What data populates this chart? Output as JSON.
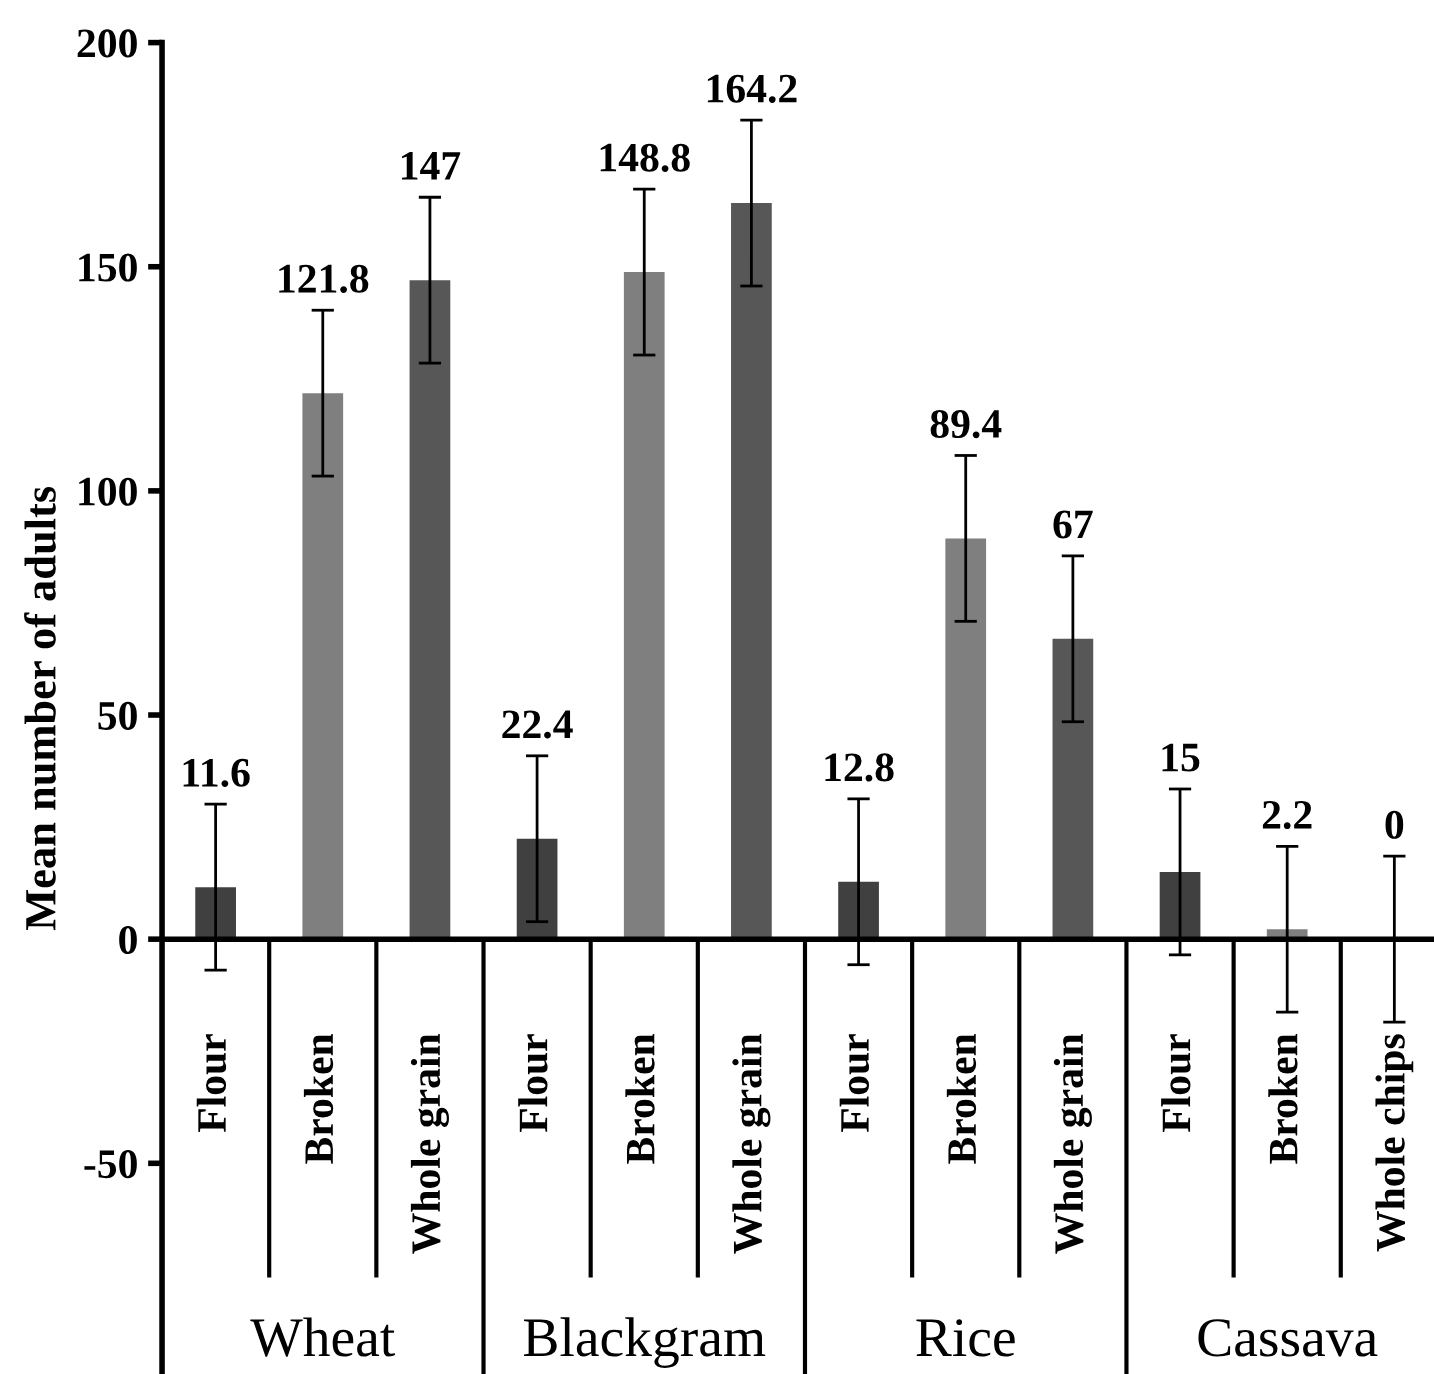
{
  "chart_data": {
    "type": "bar",
    "ylabel": "Mean number of adults",
    "categories": [
      "Flour",
      "Broken",
      "Whole grain",
      "Flour",
      "Broken",
      "Whole grain",
      "Flour",
      "Broken",
      "Whole grain",
      "Flour",
      "Broken",
      "Whole chips"
    ],
    "values": [
      11.6,
      121.8,
      147,
      22.4,
      148.8,
      164.2,
      12.8,
      89.4,
      67,
      15,
      2.2,
      0
    ],
    "errors": [
      18.5,
      18.5,
      18.5,
      18.5,
      18.5,
      18.5,
      18.5,
      18.5,
      18.5,
      18.5,
      18.5,
      18.5
    ],
    "colors": [
      "#404040",
      "#7f7f7f",
      "#575757",
      "#404040",
      "#7f7f7f",
      "#575757",
      "#404040",
      "#7f7f7f",
      "#575757",
      "#404040",
      "#7f7f7f",
      "#575757"
    ],
    "data_labels": true,
    "annotations": [
      "Wheat",
      "Blackgram",
      "Rice",
      "Cassava"
    ],
    "ylim": [
      -97,
      200
    ],
    "yticks": [
      -50,
      0,
      50,
      100,
      150,
      200
    ],
    "grid": false,
    "legend": false
  }
}
